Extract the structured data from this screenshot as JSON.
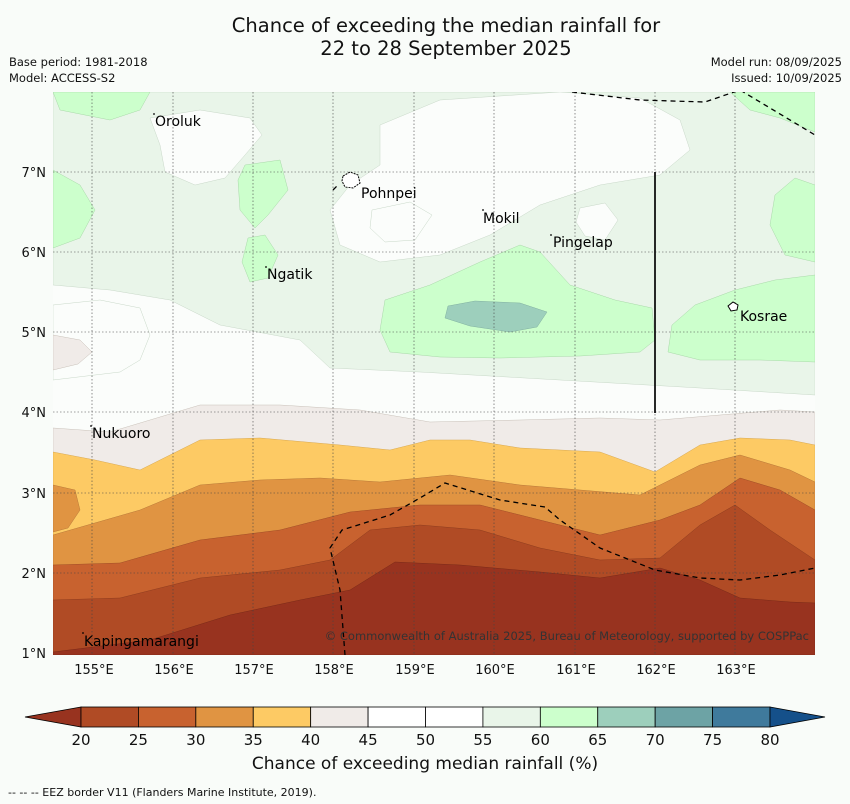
{
  "title": {
    "line1": "Chance of exceeding the median rainfall for",
    "line2": "22 to 28 September 2025"
  },
  "meta": {
    "base_period": "Base period: 1981-2018",
    "model": "Model: ACCESS-S2",
    "model_run": "Model run: 08/09/2025",
    "issued": "Issued: 10/09/2025"
  },
  "map": {
    "lon_ticks": [
      "155°E",
      "156°E",
      "157°E",
      "158°E",
      "159°E",
      "160°E",
      "161°E",
      "162°E",
      "163°E"
    ],
    "lat_ticks": [
      "1°N",
      "2°N",
      "3°N",
      "4°N",
      "5°N",
      "6°N",
      "7°N"
    ],
    "places": [
      "Oroluk",
      "Pohnpei",
      "Mokil",
      "Pingelap",
      "Ngatik",
      "Kosrae",
      "Nukuoro",
      "Kapingamarangi"
    ],
    "copyright": "© Commonwealth of Australia 2025, Bureau of Meteorology, supported by COSPPac"
  },
  "colorbar": {
    "ticks": [
      "20",
      "25",
      "30",
      "35",
      "40",
      "45",
      "50",
      "55",
      "60",
      "65",
      "70",
      "75",
      "80"
    ],
    "label": "Chance of exceeding median rainfall (%)",
    "colors": [
      "#b04b25",
      "#c8622f",
      "#e09442",
      "#fdca64",
      "#f0ebe8",
      "#ffffff",
      "#ffffff",
      "#e9f5e9",
      "#ccffcc",
      "#9dcfbc",
      "#6da3a5",
      "#3f7a9c"
    ],
    "under_color": "#98331f",
    "over_color": "#15508a"
  },
  "footer": "--  --  -- EEZ border V11 (Flanders Marine Institute, 2019)."
}
